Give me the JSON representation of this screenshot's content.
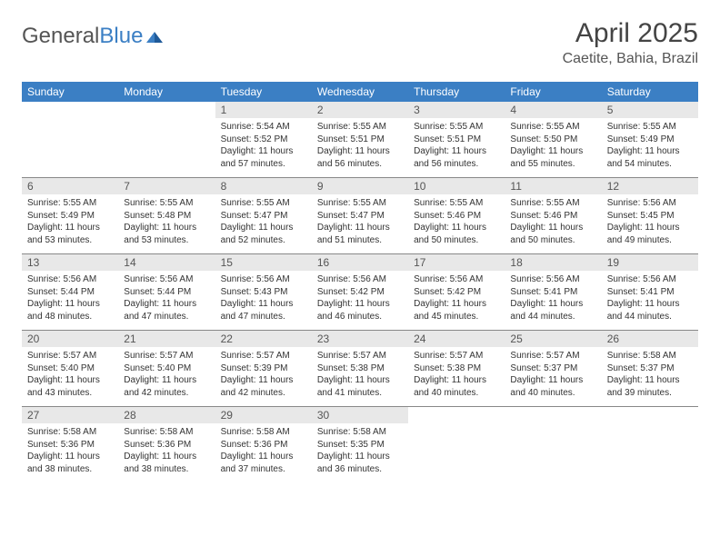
{
  "logo": {
    "text1": "General",
    "text2": "Blue"
  },
  "title": "April 2025",
  "location": "Caetite, Bahia, Brazil",
  "colors": {
    "header_bg": "#3b7fc4",
    "header_text": "#ffffff",
    "daynum_bg": "#e8e8e8",
    "border": "#888888",
    "body_text": "#333333"
  },
  "typography": {
    "title_fontsize": 30,
    "location_fontsize": 16,
    "dayheader_fontsize": 12,
    "cell_fontsize": 10
  },
  "day_headers": [
    "Sunday",
    "Monday",
    "Tuesday",
    "Wednesday",
    "Thursday",
    "Friday",
    "Saturday"
  ],
  "weeks": [
    [
      null,
      null,
      {
        "n": "1",
        "sr": "Sunrise: 5:54 AM",
        "ss": "Sunset: 5:52 PM",
        "dl": "Daylight: 11 hours and 57 minutes."
      },
      {
        "n": "2",
        "sr": "Sunrise: 5:55 AM",
        "ss": "Sunset: 5:51 PM",
        "dl": "Daylight: 11 hours and 56 minutes."
      },
      {
        "n": "3",
        "sr": "Sunrise: 5:55 AM",
        "ss": "Sunset: 5:51 PM",
        "dl": "Daylight: 11 hours and 56 minutes."
      },
      {
        "n": "4",
        "sr": "Sunrise: 5:55 AM",
        "ss": "Sunset: 5:50 PM",
        "dl": "Daylight: 11 hours and 55 minutes."
      },
      {
        "n": "5",
        "sr": "Sunrise: 5:55 AM",
        "ss": "Sunset: 5:49 PM",
        "dl": "Daylight: 11 hours and 54 minutes."
      }
    ],
    [
      {
        "n": "6",
        "sr": "Sunrise: 5:55 AM",
        "ss": "Sunset: 5:49 PM",
        "dl": "Daylight: 11 hours and 53 minutes."
      },
      {
        "n": "7",
        "sr": "Sunrise: 5:55 AM",
        "ss": "Sunset: 5:48 PM",
        "dl": "Daylight: 11 hours and 53 minutes."
      },
      {
        "n": "8",
        "sr": "Sunrise: 5:55 AM",
        "ss": "Sunset: 5:47 PM",
        "dl": "Daylight: 11 hours and 52 minutes."
      },
      {
        "n": "9",
        "sr": "Sunrise: 5:55 AM",
        "ss": "Sunset: 5:47 PM",
        "dl": "Daylight: 11 hours and 51 minutes."
      },
      {
        "n": "10",
        "sr": "Sunrise: 5:55 AM",
        "ss": "Sunset: 5:46 PM",
        "dl": "Daylight: 11 hours and 50 minutes."
      },
      {
        "n": "11",
        "sr": "Sunrise: 5:55 AM",
        "ss": "Sunset: 5:46 PM",
        "dl": "Daylight: 11 hours and 50 minutes."
      },
      {
        "n": "12",
        "sr": "Sunrise: 5:56 AM",
        "ss": "Sunset: 5:45 PM",
        "dl": "Daylight: 11 hours and 49 minutes."
      }
    ],
    [
      {
        "n": "13",
        "sr": "Sunrise: 5:56 AM",
        "ss": "Sunset: 5:44 PM",
        "dl": "Daylight: 11 hours and 48 minutes."
      },
      {
        "n": "14",
        "sr": "Sunrise: 5:56 AM",
        "ss": "Sunset: 5:44 PM",
        "dl": "Daylight: 11 hours and 47 minutes."
      },
      {
        "n": "15",
        "sr": "Sunrise: 5:56 AM",
        "ss": "Sunset: 5:43 PM",
        "dl": "Daylight: 11 hours and 47 minutes."
      },
      {
        "n": "16",
        "sr": "Sunrise: 5:56 AM",
        "ss": "Sunset: 5:42 PM",
        "dl": "Daylight: 11 hours and 46 minutes."
      },
      {
        "n": "17",
        "sr": "Sunrise: 5:56 AM",
        "ss": "Sunset: 5:42 PM",
        "dl": "Daylight: 11 hours and 45 minutes."
      },
      {
        "n": "18",
        "sr": "Sunrise: 5:56 AM",
        "ss": "Sunset: 5:41 PM",
        "dl": "Daylight: 11 hours and 44 minutes."
      },
      {
        "n": "19",
        "sr": "Sunrise: 5:56 AM",
        "ss": "Sunset: 5:41 PM",
        "dl": "Daylight: 11 hours and 44 minutes."
      }
    ],
    [
      {
        "n": "20",
        "sr": "Sunrise: 5:57 AM",
        "ss": "Sunset: 5:40 PM",
        "dl": "Daylight: 11 hours and 43 minutes."
      },
      {
        "n": "21",
        "sr": "Sunrise: 5:57 AM",
        "ss": "Sunset: 5:40 PM",
        "dl": "Daylight: 11 hours and 42 minutes."
      },
      {
        "n": "22",
        "sr": "Sunrise: 5:57 AM",
        "ss": "Sunset: 5:39 PM",
        "dl": "Daylight: 11 hours and 42 minutes."
      },
      {
        "n": "23",
        "sr": "Sunrise: 5:57 AM",
        "ss": "Sunset: 5:38 PM",
        "dl": "Daylight: 11 hours and 41 minutes."
      },
      {
        "n": "24",
        "sr": "Sunrise: 5:57 AM",
        "ss": "Sunset: 5:38 PM",
        "dl": "Daylight: 11 hours and 40 minutes."
      },
      {
        "n": "25",
        "sr": "Sunrise: 5:57 AM",
        "ss": "Sunset: 5:37 PM",
        "dl": "Daylight: 11 hours and 40 minutes."
      },
      {
        "n": "26",
        "sr": "Sunrise: 5:58 AM",
        "ss": "Sunset: 5:37 PM",
        "dl": "Daylight: 11 hours and 39 minutes."
      }
    ],
    [
      {
        "n": "27",
        "sr": "Sunrise: 5:58 AM",
        "ss": "Sunset: 5:36 PM",
        "dl": "Daylight: 11 hours and 38 minutes."
      },
      {
        "n": "28",
        "sr": "Sunrise: 5:58 AM",
        "ss": "Sunset: 5:36 PM",
        "dl": "Daylight: 11 hours and 38 minutes."
      },
      {
        "n": "29",
        "sr": "Sunrise: 5:58 AM",
        "ss": "Sunset: 5:36 PM",
        "dl": "Daylight: 11 hours and 37 minutes."
      },
      {
        "n": "30",
        "sr": "Sunrise: 5:58 AM",
        "ss": "Sunset: 5:35 PM",
        "dl": "Daylight: 11 hours and 36 minutes."
      },
      null,
      null,
      null
    ]
  ]
}
